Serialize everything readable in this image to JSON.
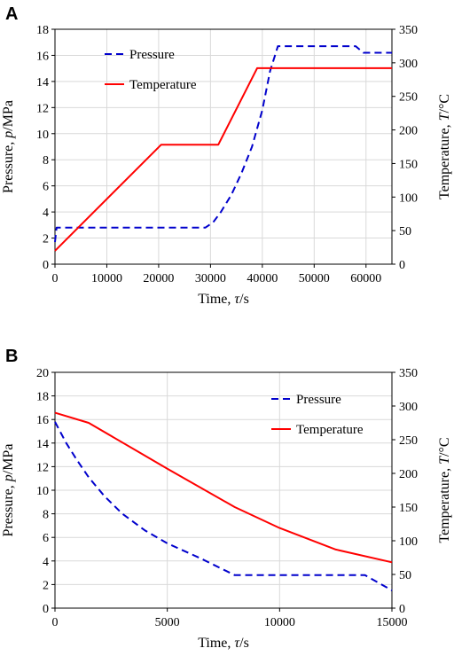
{
  "chart_data": [
    {
      "panel_label": "A",
      "type": "line",
      "xlabel": "Time, τ/s",
      "ylabel_left": "Pressure, p/MPa",
      "ylabel_right": "Temperature, T/°C",
      "xlim": [
        0,
        65000
      ],
      "xticks": [
        0,
        10000,
        20000,
        30000,
        40000,
        50000,
        60000
      ],
      "ylim_left": [
        0,
        18
      ],
      "yticks_left": [
        0,
        2,
        4,
        6,
        8,
        10,
        12,
        14,
        16,
        18
      ],
      "ylim_right": [
        0,
        350
      ],
      "yticks_right": [
        0,
        50,
        100,
        150,
        200,
        250,
        300,
        350
      ],
      "grid": true,
      "legend_position": "upper-left",
      "series": [
        {
          "name": "Pressure",
          "axis": "left",
          "style": "dashed",
          "color": "#0000cc",
          "x": [
            0,
            300,
            29000,
            30500,
            32000,
            34000,
            36000,
            38000,
            40000,
            41500,
            43000,
            58000,
            59500,
            65000
          ],
          "y": [
            1.7,
            2.8,
            2.8,
            3.2,
            4.0,
            5.3,
            7.0,
            9.0,
            11.8,
            14.8,
            16.7,
            16.7,
            16.2,
            16.2
          ]
        },
        {
          "name": "Temperature",
          "axis": "right",
          "style": "solid",
          "color": "#ff0000",
          "x": [
            0,
            20500,
            31500,
            39000,
            65000
          ],
          "y": [
            20,
            178,
            178,
            292,
            292
          ]
        }
      ]
    },
    {
      "panel_label": "B",
      "type": "line",
      "xlabel": "Time, τ/s",
      "ylabel_left": "Pressure, p/MPa",
      "ylabel_right": "Temperature, T/°C",
      "xlim": [
        0,
        15000
      ],
      "xticks": [
        0,
        5000,
        10000,
        15000
      ],
      "ylim_left": [
        0,
        20
      ],
      "yticks_left": [
        0,
        2,
        4,
        6,
        8,
        10,
        12,
        14,
        16,
        18,
        20
      ],
      "ylim_right": [
        0,
        350
      ],
      "yticks_right": [
        0,
        50,
        100,
        150,
        200,
        250,
        300,
        350
      ],
      "grid": true,
      "legend_position": "upper-right",
      "series": [
        {
          "name": "Pressure",
          "axis": "left",
          "style": "dashed",
          "color": "#0000cc",
          "x": [
            0,
            500,
            1000,
            1500,
            2200,
            3000,
            4000,
            5000,
            6500,
            8000,
            13800,
            15000
          ],
          "y": [
            15.8,
            14.0,
            12.5,
            11.1,
            9.5,
            8.0,
            6.6,
            5.5,
            4.2,
            2.8,
            2.8,
            1.5
          ]
        },
        {
          "name": "Temperature",
          "axis": "right",
          "style": "solid",
          "color": "#ff0000",
          "x": [
            0,
            1500,
            5000,
            8000,
            10000,
            12500,
            15000
          ],
          "y": [
            290,
            275,
            207,
            150,
            119,
            87,
            68
          ]
        }
      ]
    }
  ]
}
